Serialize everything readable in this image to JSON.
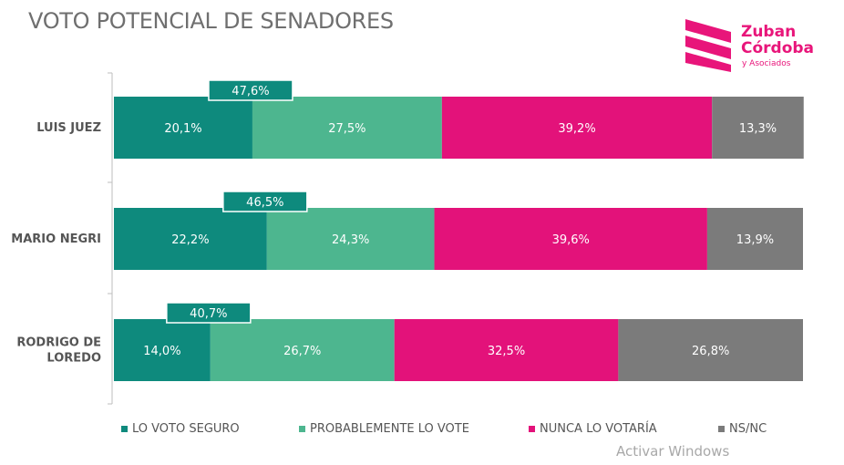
{
  "title": "VOTO POTENCIAL DE SENADORES",
  "logo": {
    "line1": "Zuban",
    "line2": "Córdoba",
    "line3": "y Asociados",
    "color": "#e8157a"
  },
  "watermark": "Activar Windows",
  "colors": {
    "LO VOTO SEGURO": "#0e8a7d",
    "PROBABLEMENTE LO VOTE": "#4db68f",
    "NUNCA LO VOTARÍA": "#e3127a",
    "NS/NC": "#7b7b7b"
  },
  "chart_data": {
    "type": "bar",
    "orientation": "horizontal",
    "stacked": true,
    "categories": [
      "LUIS JUEZ",
      "MARIO NEGRI",
      "RODRIGO DE LOREDO"
    ],
    "series": [
      {
        "name": "LO VOTO SEGURO",
        "values": [
          20.1,
          22.2,
          14.0
        ],
        "labels": [
          "20,1%",
          "22,2%",
          "14,0%"
        ]
      },
      {
        "name": "PROBABLEMENTE LO VOTE",
        "values": [
          27.5,
          24.3,
          26.7
        ],
        "labels": [
          "27,5%",
          "24,3%",
          "26,7%"
        ]
      },
      {
        "name": "NUNCA LO VOTARÍA",
        "values": [
          39.2,
          39.6,
          32.5
        ],
        "labels": [
          "39,2%",
          "39,6%",
          "32,5%"
        ]
      },
      {
        "name": "NS/NC",
        "values": [
          13.3,
          13.9,
          26.8
        ],
        "labels": [
          "13,3%",
          "13,9%",
          "26,8%"
        ]
      }
    ],
    "totals": {
      "values": [
        47.6,
        46.5,
        40.7
      ],
      "labels": [
        "47,6%",
        "46,5%",
        "40,7%"
      ]
    },
    "xlim": [
      0,
      100
    ],
    "legend_position": "bottom",
    "grid": false
  }
}
